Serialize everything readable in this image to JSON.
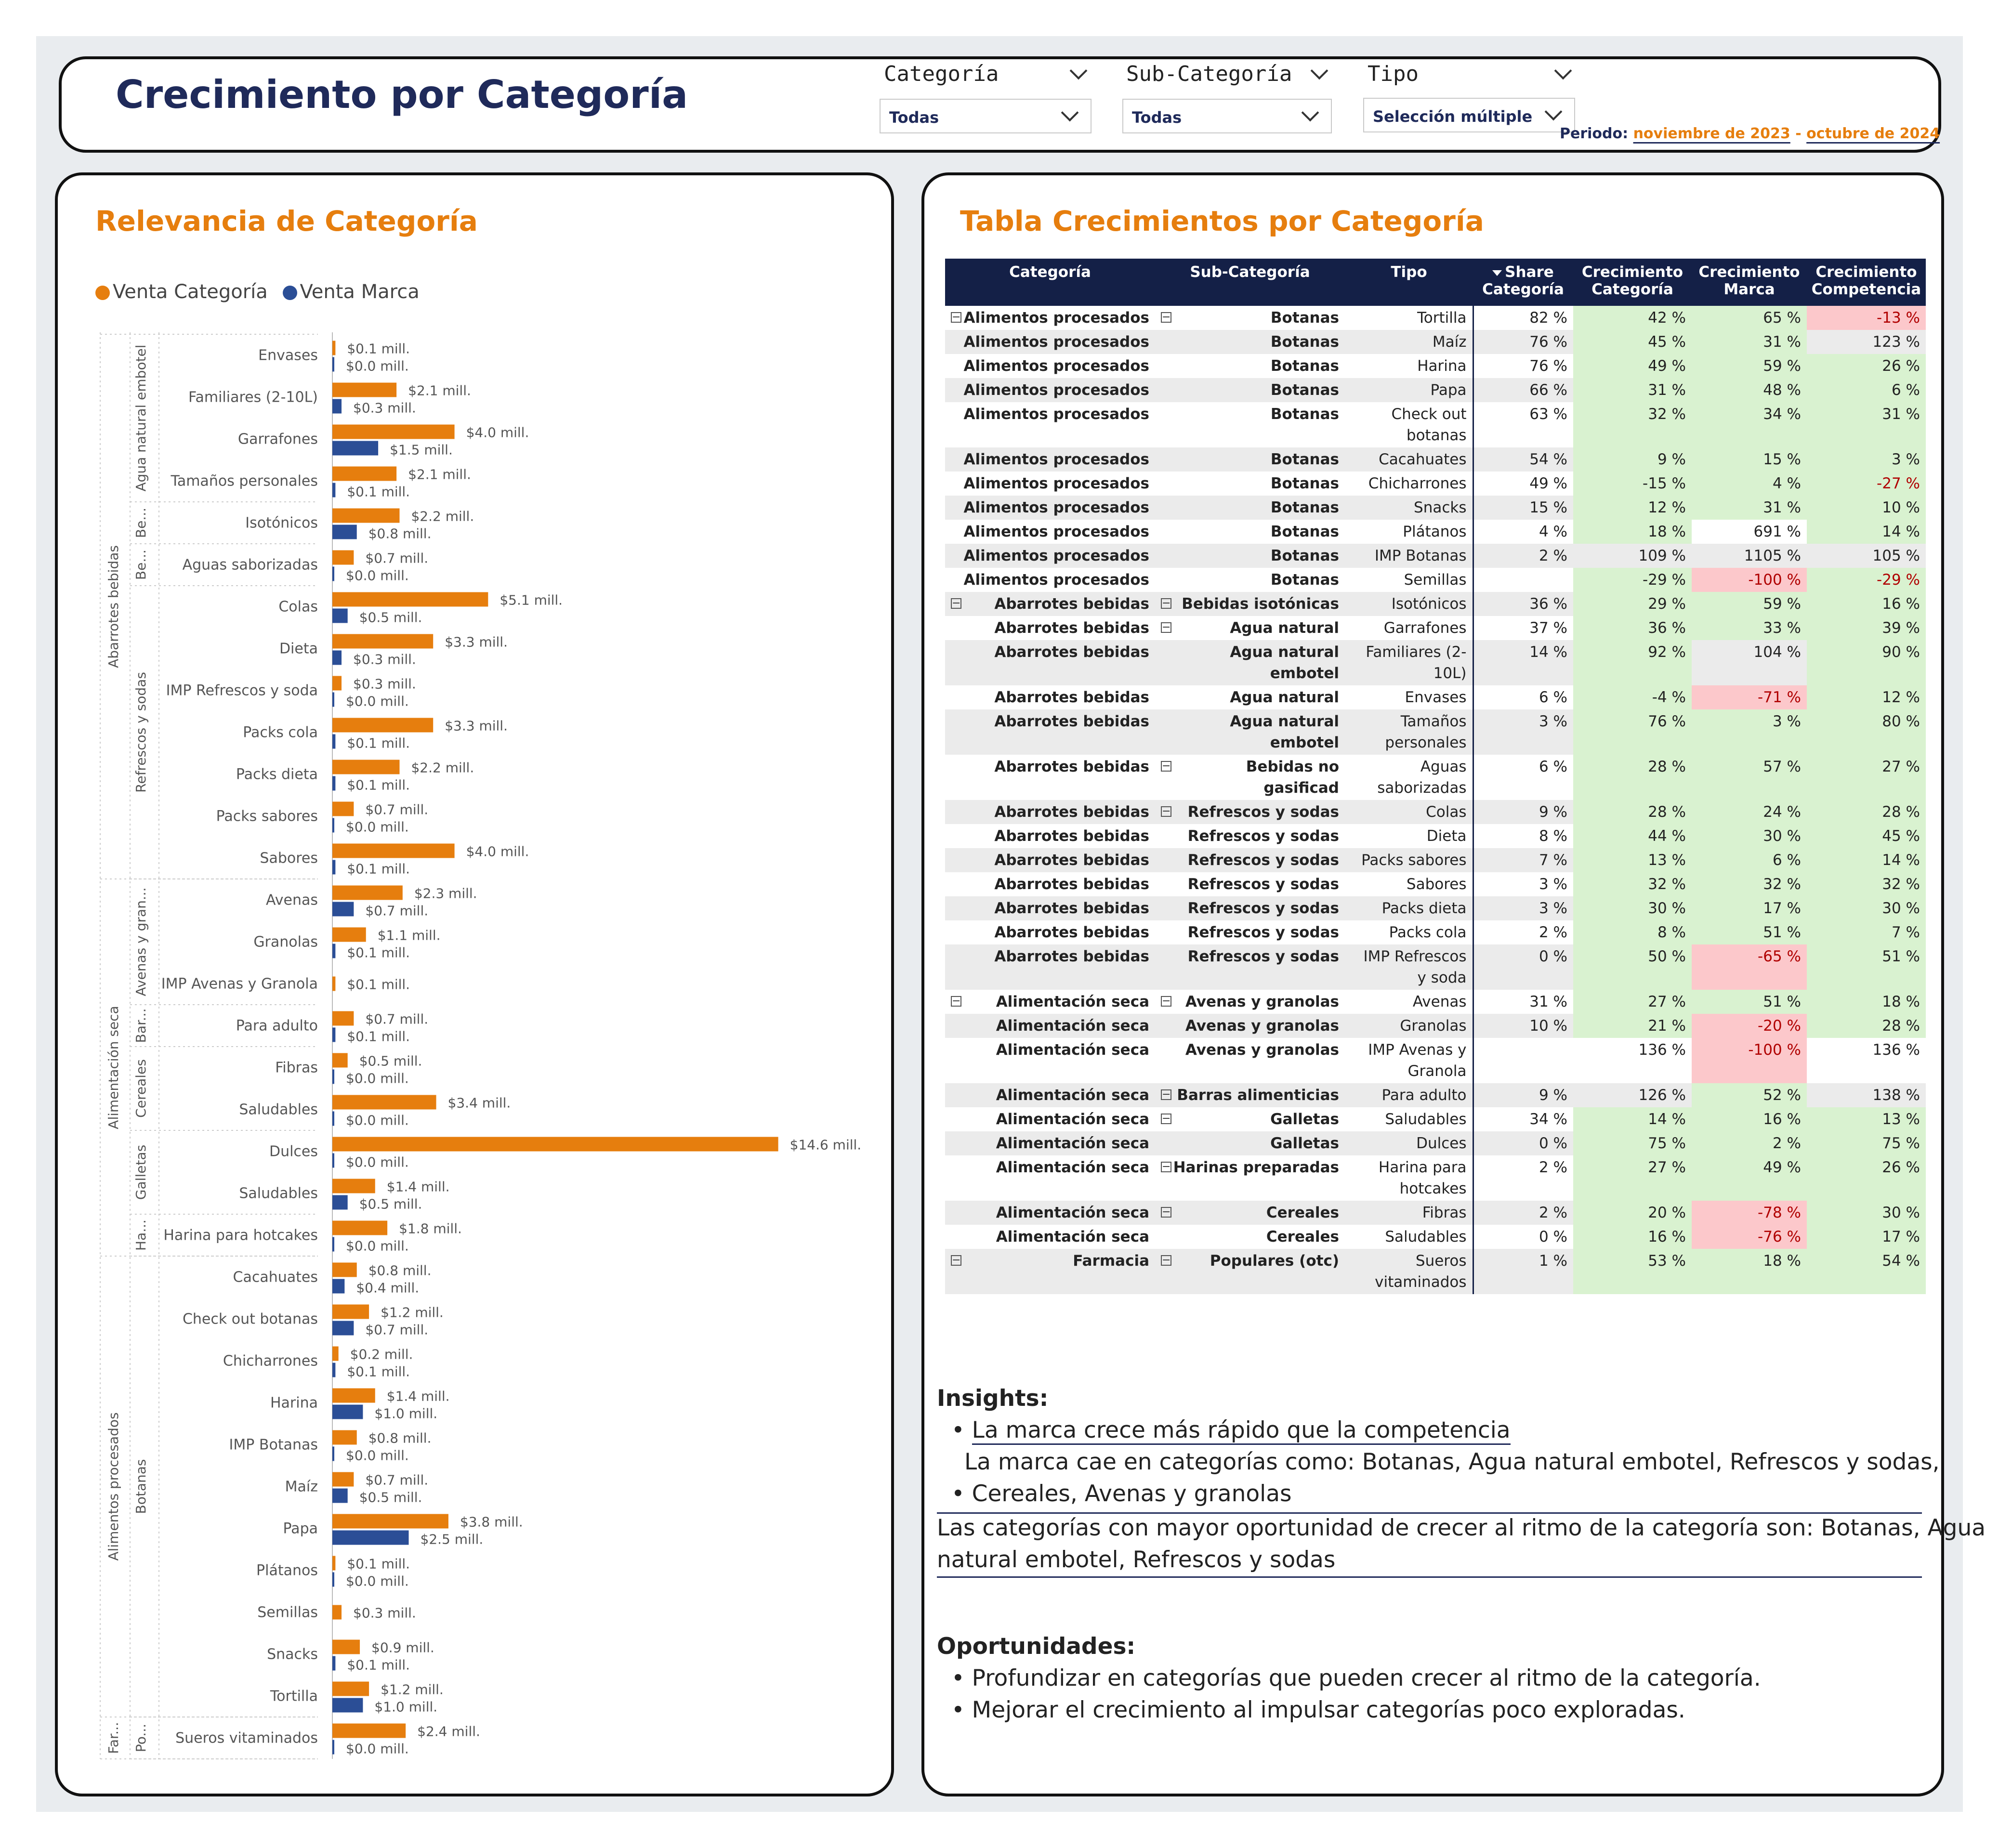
{
  "header": {
    "title": "Crecimiento por Categoría",
    "filters": [
      {
        "label": "Categoría",
        "value": "Todas"
      },
      {
        "label": "Sub-Categoría",
        "value": "Todas"
      },
      {
        "label": "Tipo",
        "value": "Selección múltiple"
      }
    ],
    "periodo_label": "Periodo:",
    "periodo_start": "noviembre de 2023",
    "periodo_sep": "-",
    "periodo_end": "octubre de 2024"
  },
  "relevancia": {
    "title": "Relevancia de Categoría",
    "legend": [
      {
        "name": "Venta Categoría",
        "color": "#e67e0e"
      },
      {
        "name": "Venta Marca",
        "color": "#2b4e96"
      }
    ]
  },
  "chart_data": {
    "type": "bar",
    "orientation": "horizontal",
    "unit": "mill.",
    "series_names": [
      "Venta Categoría",
      "Venta Marca"
    ],
    "groups": [
      {
        "label": "Abarrotes bebidas",
        "subgroups": [
          {
            "label": "Agua natural embotel",
            "items": [
              {
                "name": "Envases",
                "cat": 0.1,
                "marca": 0.0
              },
              {
                "name": "Familiares (2-10L)",
                "cat": 2.1,
                "marca": 0.3
              },
              {
                "name": "Garrafones",
                "cat": 4.0,
                "marca": 1.5
              },
              {
                "name": "Tamaños personales",
                "cat": 2.1,
                "marca": 0.1
              }
            ]
          },
          {
            "label": "Be...",
            "items": [
              {
                "name": "Isotónicos",
                "cat": 2.2,
                "marca": 0.8
              }
            ]
          },
          {
            "label": "Be...",
            "items": [
              {
                "name": "Aguas saborizadas",
                "cat": 0.7,
                "marca": 0.0
              }
            ]
          },
          {
            "label": "Refrescos y sodas",
            "items": [
              {
                "name": "Colas",
                "cat": 5.1,
                "marca": 0.5
              },
              {
                "name": "Dieta",
                "cat": 3.3,
                "marca": 0.3
              },
              {
                "name": "IMP Refrescos y soda",
                "cat": 0.3,
                "marca": 0.0
              },
              {
                "name": "Packs cola",
                "cat": 3.3,
                "marca": 0.1
              },
              {
                "name": "Packs dieta",
                "cat": 2.2,
                "marca": 0.1
              },
              {
                "name": "Packs sabores",
                "cat": 0.7,
                "marca": 0.0
              },
              {
                "name": "Sabores",
                "cat": 4.0,
                "marca": 0.1
              }
            ]
          }
        ]
      },
      {
        "label": "Alimentación seca",
        "subgroups": [
          {
            "label": "Avenas y gran...",
            "items": [
              {
                "name": "Avenas",
                "cat": 2.3,
                "marca": 0.7
              },
              {
                "name": "Granolas",
                "cat": 1.1,
                "marca": 0.1
              },
              {
                "name": "IMP Avenas y Granola",
                "cat": 0.1,
                "marca": null
              }
            ]
          },
          {
            "label": "Bar...",
            "items": [
              {
                "name": "Para adulto",
                "cat": 0.7,
                "marca": 0.1
              }
            ]
          },
          {
            "label": "Cereales",
            "items": [
              {
                "name": "Fibras",
                "cat": 0.5,
                "marca": 0.0
              },
              {
                "name": "Saludables",
                "cat": 3.4,
                "marca": 0.0
              }
            ]
          },
          {
            "label": "Galletas",
            "items": [
              {
                "name": "Dulces",
                "cat": 14.6,
                "marca": 0.0
              },
              {
                "name": "Saludables",
                "cat": 1.4,
                "marca": 0.5
              }
            ]
          },
          {
            "label": "Ha...",
            "items": [
              {
                "name": "Harina para hotcakes",
                "cat": 1.8,
                "marca": 0.0
              }
            ]
          }
        ]
      },
      {
        "label": "Alimentos procesados",
        "subgroups": [
          {
            "label": "Botanas",
            "items": [
              {
                "name": "Cacahuates",
                "cat": 0.8,
                "marca": 0.4
              },
              {
                "name": "Check out botanas",
                "cat": 1.2,
                "marca": 0.7
              },
              {
                "name": "Chicharrones",
                "cat": 0.2,
                "marca": 0.1
              },
              {
                "name": "Harina",
                "cat": 1.4,
                "marca": 1.0
              },
              {
                "name": "IMP Botanas",
                "cat": 0.8,
                "marca": 0.0
              },
              {
                "name": "Maíz",
                "cat": 0.7,
                "marca": 0.5
              },
              {
                "name": "Papa",
                "cat": 3.8,
                "marca": 2.5
              },
              {
                "name": "Plátanos",
                "cat": 0.1,
                "marca": 0.0
              },
              {
                "name": "Semillas",
                "cat": 0.3,
                "marca": null
              },
              {
                "name": "Snacks",
                "cat": 0.9,
                "marca": 0.1
              },
              {
                "name": "Tortilla",
                "cat": 1.2,
                "marca": 1.0
              }
            ]
          }
        ]
      },
      {
        "label": "Far...",
        "subgroups": [
          {
            "label": "Po...",
            "items": [
              {
                "name": "Sueros vitaminados",
                "cat": 2.4,
                "marca": 0.0
              }
            ]
          }
        ]
      }
    ]
  },
  "tabla": {
    "title": "Tabla Crecimientos por Categoría",
    "columns": [
      {
        "label": "Categoría"
      },
      {
        "label": "Sub-Categoría"
      },
      {
        "label": "Tipo"
      },
      {
        "label": "Share Categoría",
        "sort": "desc"
      },
      {
        "label": "Crecimiento Categoría"
      },
      {
        "label": "Crecimiento Marca"
      },
      {
        "label": "Crecimiento Competencia"
      }
    ],
    "rows": [
      {
        "e1": true,
        "cat": "Alimentos procesados",
        "e2": true,
        "sub": "Botanas",
        "tipo": "Tortilla",
        "share": "82 %",
        "cc": "42 %",
        "cm": "65 %",
        "ccomp": "-13 %",
        "s": [
          "pos",
          "pos",
          "neg"
        ]
      },
      {
        "cat": "Alimentos procesados",
        "sub": "Botanas",
        "tipo": "Maíz",
        "share": "76 %",
        "cc": "45 %",
        "cm": "31 %",
        "ccomp": "123 %",
        "s": [
          "pos",
          "pos",
          "neu"
        ]
      },
      {
        "cat": "Alimentos procesados",
        "sub": "Botanas",
        "tipo": "Harina",
        "share": "76 %",
        "cc": "49 %",
        "cm": "59 %",
        "ccomp": "26 %",
        "s": [
          "pos",
          "pos",
          "pos"
        ]
      },
      {
        "cat": "Alimentos procesados",
        "sub": "Botanas",
        "tipo": "Papa",
        "share": "66 %",
        "cc": "31 %",
        "cm": "48 %",
        "ccomp": "6 %",
        "s": [
          "pos",
          "pos",
          "pos"
        ]
      },
      {
        "cat": "Alimentos procesados",
        "sub": "Botanas",
        "tipo": "Check out botanas",
        "share": "63 %",
        "cc": "32 %",
        "cm": "34 %",
        "ccomp": "31 %",
        "s": [
          "pos",
          "pos",
          "pos"
        ],
        "tall": true
      },
      {
        "cat": "Alimentos procesados",
        "sub": "Botanas",
        "tipo": "Cacahuates",
        "share": "54 %",
        "cc": "9 %",
        "cm": "15 %",
        "ccomp": "3 %",
        "s": [
          "pos",
          "pos",
          "pos"
        ]
      },
      {
        "cat": "Alimentos procesados",
        "sub": "Botanas",
        "tipo": "Chicharrones",
        "share": "49 %",
        "cc": "-15 %",
        "cm": "4 %",
        "ccomp": "-27 %",
        "s": [
          "pos",
          "pos",
          "posneg"
        ]
      },
      {
        "cat": "Alimentos procesados",
        "sub": "Botanas",
        "tipo": "Snacks",
        "share": "15 %",
        "cc": "12 %",
        "cm": "31 %",
        "ccomp": "10 %",
        "s": [
          "pos",
          "pos",
          "pos"
        ]
      },
      {
        "cat": "Alimentos procesados",
        "sub": "Botanas",
        "tipo": "Plátanos",
        "share": "4 %",
        "cc": "18 %",
        "cm": "691 %",
        "ccomp": "14 %",
        "s": [
          "pos",
          "wht",
          "pos"
        ]
      },
      {
        "cat": "Alimentos procesados",
        "sub": "Botanas",
        "tipo": "IMP Botanas",
        "share": "2 %",
        "cc": "109 %",
        "cm": "1105 %",
        "ccomp": "105 %",
        "s": [
          "neu",
          "neu",
          "neu"
        ]
      },
      {
        "cat": "Alimentos procesados",
        "sub": "Botanas",
        "tipo": "Semillas",
        "share": "",
        "cc": "-29 %",
        "cm": "-100 %",
        "ccomp": "-29 %",
        "s": [
          "pos",
          "neg",
          "posneg"
        ]
      },
      {
        "e1": true,
        "cat": "Abarrotes bebidas",
        "e2": true,
        "sub": "Bebidas isotónicas",
        "tipo": "Isotónicos",
        "share": "36 %",
        "cc": "29 %",
        "cm": "59 %",
        "ccomp": "16 %",
        "s": [
          "pos",
          "pos",
          "pos"
        ]
      },
      {
        "cat": "Abarrotes bebidas",
        "e2": true,
        "sub": "Agua natural",
        "tipo": "Garrafones",
        "share": "37 %",
        "cc": "36 %",
        "cm": "33 %",
        "ccomp": "39 %",
        "s": [
          "pos",
          "pos",
          "pos"
        ]
      },
      {
        "cat": "Abarrotes bebidas",
        "sub": "Agua natural embotel",
        "tipo": "Familiares (2-10L)",
        "share": "14 %",
        "cc": "92 %",
        "cm": "104 %",
        "ccomp": "90 %",
        "s": [
          "pos",
          "neu",
          "pos"
        ],
        "tall": true
      },
      {
        "cat": "Abarrotes bebidas",
        "sub": "Agua natural",
        "tipo": "Envases",
        "share": "6 %",
        "cc": "-4 %",
        "cm": "-71 %",
        "ccomp": "12 %",
        "s": [
          "pos",
          "neg",
          "pos"
        ]
      },
      {
        "cat": "Abarrotes bebidas",
        "sub": "Agua natural embotel",
        "tipo": "Tamaños personales",
        "share": "3 %",
        "cc": "76 %",
        "cm": "3 %",
        "ccomp": "80 %",
        "s": [
          "pos",
          "pos",
          "pos"
        ],
        "tall": true
      },
      {
        "cat": "Abarrotes bebidas",
        "e2": true,
        "sub": "Bebidas no gasificad",
        "tipo": "Aguas saborizadas",
        "share": "6 %",
        "cc": "28 %",
        "cm": "57 %",
        "ccomp": "27 %",
        "s": [
          "pos",
          "pos",
          "pos"
        ],
        "tall": true
      },
      {
        "cat": "Abarrotes bebidas",
        "e2": true,
        "sub": "Refrescos y sodas",
        "tipo": "Colas",
        "share": "9 %",
        "cc": "28 %",
        "cm": "24 %",
        "ccomp": "28 %",
        "s": [
          "pos",
          "pos",
          "pos"
        ]
      },
      {
        "cat": "Abarrotes bebidas",
        "sub": "Refrescos y sodas",
        "tipo": "Dieta",
        "share": "8 %",
        "cc": "44 %",
        "cm": "30 %",
        "ccomp": "45 %",
        "s": [
          "pos",
          "pos",
          "pos"
        ]
      },
      {
        "cat": "Abarrotes bebidas",
        "sub": "Refrescos y sodas",
        "tipo": "Packs sabores",
        "share": "7 %",
        "cc": "13 %",
        "cm": "6 %",
        "ccomp": "14 %",
        "s": [
          "pos",
          "pos",
          "pos"
        ]
      },
      {
        "cat": "Abarrotes bebidas",
        "sub": "Refrescos y sodas",
        "tipo": "Sabores",
        "share": "3 %",
        "cc": "32 %",
        "cm": "32 %",
        "ccomp": "32 %",
        "s": [
          "pos",
          "pos",
          "pos"
        ]
      },
      {
        "cat": "Abarrotes bebidas",
        "sub": "Refrescos y sodas",
        "tipo": "Packs dieta",
        "share": "3 %",
        "cc": "30 %",
        "cm": "17 %",
        "ccomp": "30 %",
        "s": [
          "pos",
          "pos",
          "pos"
        ]
      },
      {
        "cat": "Abarrotes bebidas",
        "sub": "Refrescos y sodas",
        "tipo": "Packs cola",
        "share": "2 %",
        "cc": "8 %",
        "cm": "51 %",
        "ccomp": "7 %",
        "s": [
          "pos",
          "pos",
          "pos"
        ]
      },
      {
        "cat": "Abarrotes bebidas",
        "sub": "Refrescos y sodas",
        "tipo": "IMP Refrescos y soda",
        "share": "0 %",
        "cc": "50 %",
        "cm": "-65 %",
        "ccomp": "51 %",
        "s": [
          "pos",
          "neg",
          "pos"
        ],
        "tall": true
      },
      {
        "e1": true,
        "cat": "Alimentación seca",
        "e2": true,
        "sub": "Avenas y granolas",
        "tipo": "Avenas",
        "share": "31 %",
        "cc": "27 %",
        "cm": "51 %",
        "ccomp": "18 %",
        "s": [
          "pos",
          "pos",
          "pos"
        ]
      },
      {
        "cat": "Alimentación seca",
        "sub": "Avenas y granolas",
        "tipo": "Granolas",
        "share": "10 %",
        "cc": "21 %",
        "cm": "-20 %",
        "ccomp": "28 %",
        "s": [
          "pos",
          "neg",
          "pos"
        ]
      },
      {
        "cat": "Alimentación seca",
        "sub": "Avenas y granolas",
        "tipo": "IMP Avenas y Granola",
        "share": "",
        "cc": "136 %",
        "cm": "-100 %",
        "ccomp": "136 %",
        "s": [
          "wht",
          "neg",
          "wht"
        ],
        "tall": true
      },
      {
        "cat": "Alimentación seca",
        "e2": true,
        "sub": "Barras alimenticias",
        "tipo": "Para adulto",
        "share": "9 %",
        "cc": "126 %",
        "cm": "52 %",
        "ccomp": "138 %",
        "s": [
          "neu",
          "pos",
          "neu"
        ]
      },
      {
        "cat": "Alimentación seca",
        "e2": true,
        "sub": "Galletas",
        "tipo": "Saludables",
        "share": "34 %",
        "cc": "14 %",
        "cm": "16 %",
        "ccomp": "13 %",
        "s": [
          "pos",
          "pos",
          "pos"
        ]
      },
      {
        "cat": "Alimentación seca",
        "sub": "Galletas",
        "tipo": "Dulces",
        "share": "0 %",
        "cc": "75 %",
        "cm": "2 %",
        "ccomp": "75 %",
        "s": [
          "pos",
          "pos",
          "pos"
        ]
      },
      {
        "cat": "Alimentación seca",
        "e2": true,
        "sub": "Harinas preparadas",
        "tipo": "Harina para hotcakes",
        "share": "2 %",
        "cc": "27 %",
        "cm": "49 %",
        "ccomp": "26 %",
        "s": [
          "pos",
          "pos",
          "pos"
        ],
        "tall": true
      },
      {
        "cat": "Alimentación seca",
        "e2": true,
        "sub": "Cereales",
        "tipo": "Fibras",
        "share": "2 %",
        "cc": "20 %",
        "cm": "-78 %",
        "ccomp": "30 %",
        "s": [
          "pos",
          "neg",
          "pos"
        ]
      },
      {
        "cat": "Alimentación seca",
        "sub": "Cereales",
        "tipo": "Saludables",
        "share": "0 %",
        "cc": "16 %",
        "cm": "-76 %",
        "ccomp": "17 %",
        "s": [
          "pos",
          "neg",
          "pos"
        ]
      },
      {
        "e1": true,
        "cat": "Farmacia",
        "e2": true,
        "sub": "Populares (otc)",
        "tipo": "Sueros vitaminados",
        "share": "1 %",
        "cc": "53 %",
        "cm": "18 %",
        "ccomp": "54 %",
        "s": [
          "pos",
          "pos",
          "pos"
        ],
        "tall": true
      }
    ]
  },
  "insights": {
    "title": "Insights:",
    "bullet1": "La marca crece más rápido que la competencia",
    "line2": "La marca cae en categorías como: Botanas, Agua natural embotel, Refrescos y sodas,",
    "bullet3": "Cereales, Avenas y granolas",
    "line4": "Las categorías con mayor oportunidad de crecer al ritmo de la categoría son: Botanas, Agua",
    "line5": "natural embotel, Refrescos y sodas"
  },
  "oportunidades": {
    "title": "Oportunidades:",
    "bullet1": "Profundizar en categorías que pueden crecer al ritmo de la categoría.",
    "bullet2": "Mejorar el crecimiento al impulsar categorías poco exploradas."
  }
}
